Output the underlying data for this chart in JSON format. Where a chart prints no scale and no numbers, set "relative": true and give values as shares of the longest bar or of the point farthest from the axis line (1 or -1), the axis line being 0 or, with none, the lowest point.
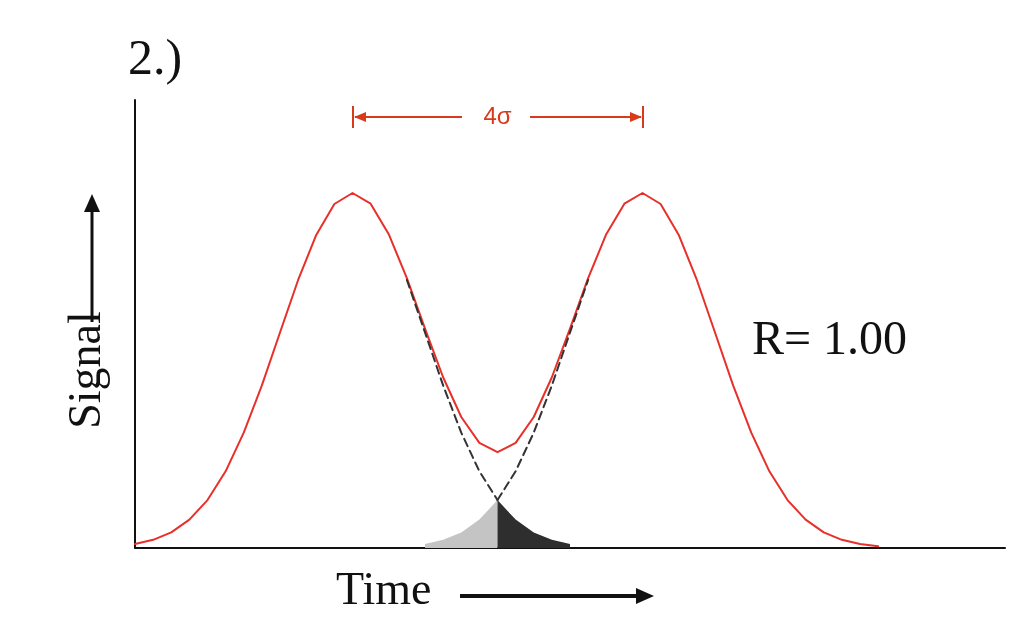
{
  "chart_data": {
    "type": "line",
    "title": "2.)",
    "xlabel": "Time",
    "ylabel": "Signal",
    "relative": true,
    "grid": false,
    "marker": "none",
    "categories": [
      null,
      null,
      null,
      null,
      null,
      null,
      null,
      null,
      null,
      null,
      null,
      null,
      null,
      null,
      null,
      null,
      null,
      null,
      null,
      null,
      null,
      null,
      null,
      null,
      null,
      null,
      null,
      null,
      null,
      null,
      null,
      null,
      null,
      null,
      null,
      null,
      null,
      null,
      null,
      null,
      null,
      null,
      null,
      null,
      null,
      null,
      null,
      null,
      null
    ],
    "annotations": [
      "4σ",
      "R= 1.00"
    ],
    "series": [
      {
        "type": "area",
        "color": "#c4c4c4",
        "values": [
          null,
          null,
          null,
          null,
          null,
          null,
          null,
          null,
          null,
          null,
          null,
          null,
          null,
          null,
          null,
          null,
          0.011,
          0.023,
          0.044,
          0.08,
          0.135,
          null,
          null,
          null,
          null,
          null,
          null,
          null,
          null,
          null,
          null,
          null,
          null,
          null,
          null,
          null,
          null,
          null,
          null,
          null,
          null,
          null,
          null,
          null,
          null,
          null,
          null,
          null,
          null
        ]
      },
      {
        "type": "area",
        "color": "#2e2e2e",
        "values": [
          null,
          null,
          null,
          null,
          null,
          null,
          null,
          null,
          null,
          null,
          null,
          null,
          null,
          null,
          null,
          null,
          null,
          null,
          null,
          null,
          0.135,
          0.08,
          0.044,
          0.023,
          0.011,
          null,
          null,
          null,
          null,
          null,
          null,
          null,
          null,
          null,
          null,
          null,
          null,
          null,
          null,
          null,
          null,
          null,
          null,
          null,
          null,
          null,
          null,
          null,
          null
        ]
      },
      {
        "color": "#e8302a",
        "line_style": "solid",
        "values": [
          0.011,
          0.023,
          0.044,
          0.08,
          0.135,
          0.216,
          0.325,
          0.458,
          0.607,
          0.755,
          0.882,
          0.969,
          1.0,
          0.97,
          0.884,
          0.76,
          0.618,
          0.481,
          0.369,
          0.296,
          0.27,
          0.296,
          0.369,
          0.481,
          0.618,
          0.76,
          0.884,
          0.97,
          1.0,
          0.969,
          0.882,
          0.755,
          0.607,
          0.458,
          0.325,
          0.216,
          0.135,
          0.08,
          0.044,
          0.023,
          0.011,
          0.005,
          null,
          null,
          null,
          null,
          null,
          null,
          null
        ]
      },
      {
        "color": "#333333",
        "line_style": "dashed",
        "values": [
          null,
          null,
          null,
          null,
          null,
          null,
          null,
          null,
          null,
          null,
          null,
          null,
          null,
          null,
          null,
          0.755,
          0.607,
          0.458,
          0.325,
          0.216,
          0.135,
          null,
          null,
          null,
          null,
          null,
          null,
          null,
          null,
          null,
          null,
          null,
          null,
          null,
          null,
          null,
          null,
          null,
          null,
          null,
          null,
          null,
          null,
          null,
          null,
          null,
          null,
          null,
          null
        ]
      },
      {
        "color": "#333333",
        "line_style": "dashed",
        "values": [
          null,
          null,
          null,
          null,
          null,
          null,
          null,
          null,
          null,
          null,
          null,
          null,
          null,
          null,
          null,
          null,
          null,
          null,
          null,
          null,
          0.135,
          0.216,
          0.325,
          0.458,
          0.607,
          0.755,
          null,
          null,
          null,
          null,
          null,
          null,
          null,
          null,
          null,
          null,
          null,
          null,
          null,
          null,
          null,
          null,
          null,
          null,
          null,
          null,
          null,
          null,
          null
        ]
      }
    ]
  }
}
